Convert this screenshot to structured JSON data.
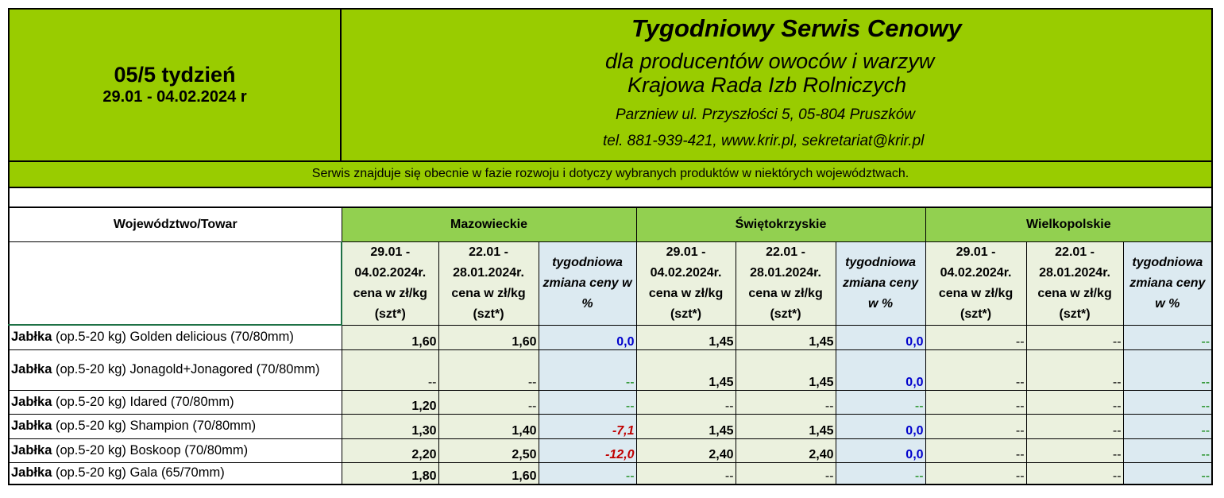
{
  "header": {
    "week": "05/5 tydzień",
    "dates": "29.01 - 04.02.2024 r",
    "title": "Tygodniowy Serwis Cenowy",
    "subtitle1": "dla producentów owoców i warzyw",
    "subtitle2": "Krajowa Rada Izb Rolniczych",
    "address": "Parzniew ul. Przyszłości 5, 05-804 Pruszków",
    "contact": "tel. 881-939-421, www.krir.pl, sekretariat@krir.pl"
  },
  "notice": "Serwis znajduje się obecnie w fazie rozwoju i dotyczy wybranych produktów w niektórych województwach.",
  "table": {
    "label_header": "Województwo/Towar",
    "regions": [
      "Mazowieckie",
      "Świętokrzyskie",
      "Wielkopolskie"
    ],
    "sub_headers": [
      "29.01 - 04.02.2024r. cena w zł/kg (szt*)",
      "22.01 - 28.01.2024r. cena w zł/kg (szt*)",
      "tygodniowa zmiana ceny w %",
      "29.01 - 04.02.2024r. cena w zł/kg (szt*)",
      "22.01 - 28.01.2024r. cena w zł/kg (szt*)",
      "tygodniowa zmiana ceny w %",
      "29.01 - 04.02.2024r. cena w zł/kg (szt*)",
      "22.01 - 28.01.2024r. cena w zł/kg (szt*)",
      "tygodniowa zmiana ceny w %"
    ],
    "rows": [
      {
        "bold": "Jabłka",
        "rest": " (op.5-20 kg) Golden delicious (70/80mm)",
        "values": [
          "1,60",
          "1,60",
          "0,0",
          "1,45",
          "1,45",
          "0,0",
          "--",
          "--",
          "--"
        ]
      },
      {
        "bold": "Jabłka",
        "rest": " (op.5-20 kg) Jonagold+Jonagored (70/80mm)",
        "values": [
          "--",
          "--",
          "--",
          "1,45",
          "1,45",
          "0,0",
          "--",
          "--",
          "--"
        ]
      },
      {
        "bold": "Jabłka",
        "rest": " (op.5-20 kg) Idared (70/80mm)",
        "values": [
          "1,20",
          "--",
          "--",
          "--",
          "--",
          "--",
          "--",
          "--",
          "--"
        ]
      },
      {
        "bold": "Jabłka",
        "rest": " (op.5-20 kg) Shampion (70/80mm)",
        "values": [
          "1,30",
          "1,40",
          "-7,1",
          "1,45",
          "1,45",
          "0,0",
          "--",
          "--",
          "--"
        ]
      },
      {
        "bold": "Jabłka",
        "rest": " (op.5-20 kg) Boskoop (70/80mm)",
        "values": [
          "2,20",
          "2,50",
          "-12,0",
          "2,40",
          "2,40",
          "0,0",
          "--",
          "--",
          "--"
        ]
      },
      {
        "bold": "Jabłka",
        "rest": " (op.5-20 kg) Gala (65/70mm)",
        "values": [
          "1,80",
          "1,60",
          "--",
          "--",
          "--",
          "--",
          "--",
          "--",
          "--"
        ]
      }
    ],
    "row_heights": [
      31,
      51,
      30,
      31,
      30,
      28
    ]
  },
  "colors": {
    "header_green": "#99cc00",
    "region_green": "#92d050",
    "price_bg": "#ebf1de",
    "change_bg": "#dceaf1",
    "zero_blue": "#0000cc",
    "neg_red": "#c00000",
    "dash_green": "#008000"
  }
}
